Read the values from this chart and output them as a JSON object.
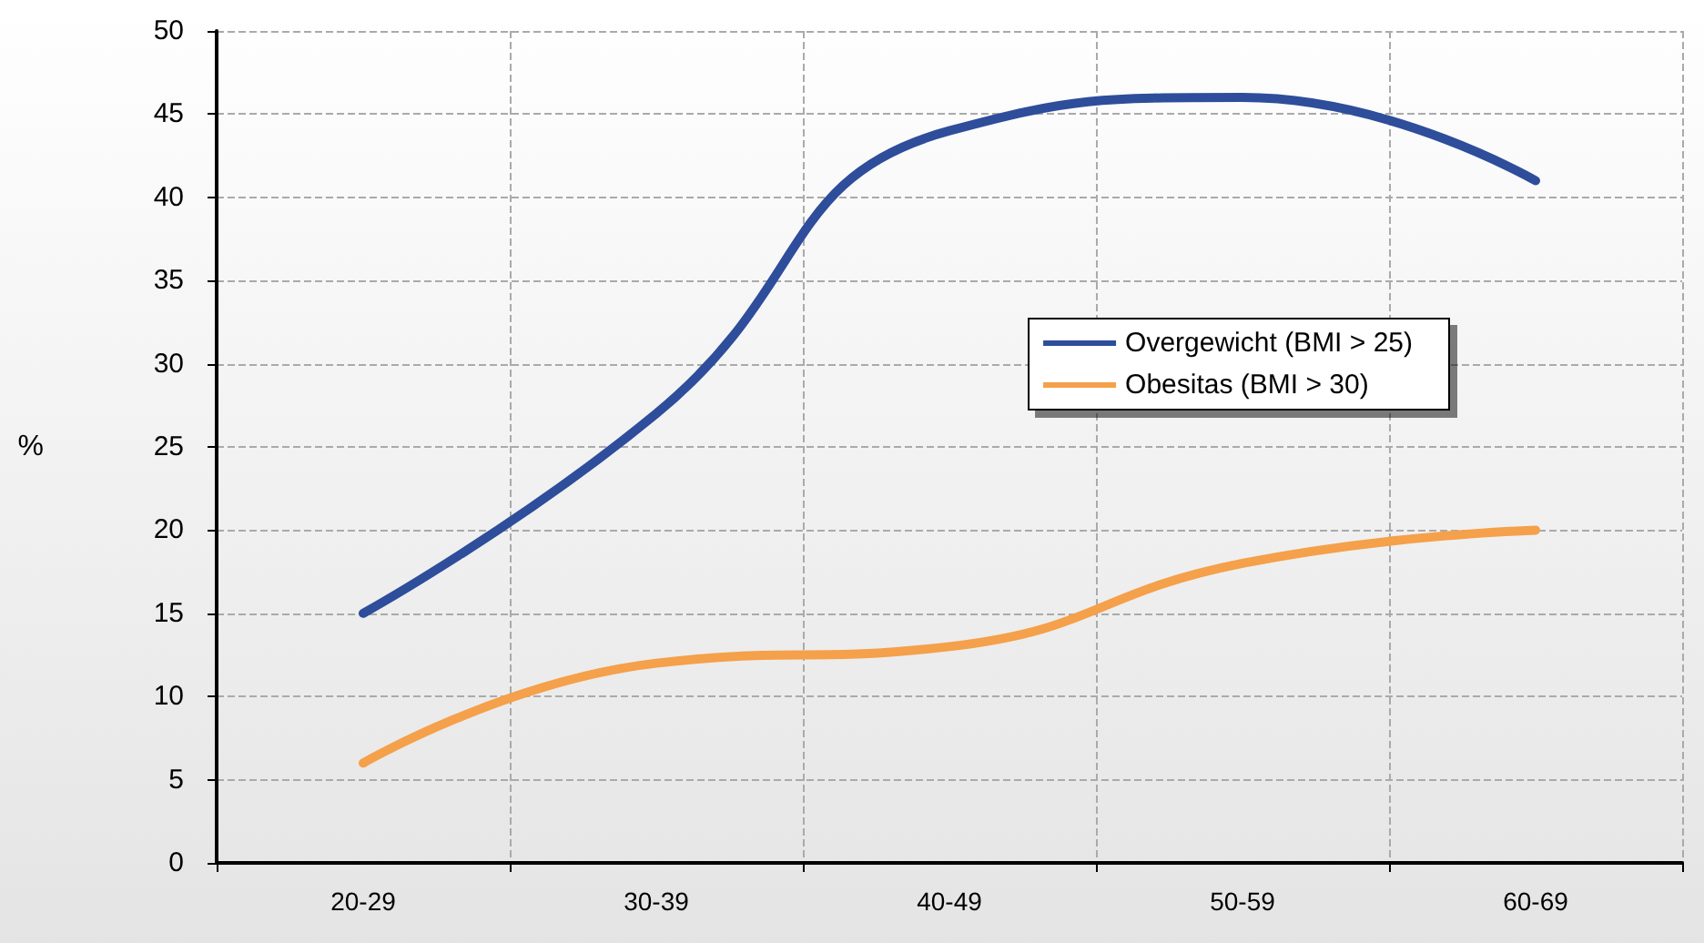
{
  "chart_data": {
    "type": "line",
    "ylabel": "%",
    "categories": [
      "20-29",
      "30-39",
      "40-49",
      "50-59",
      "60-69"
    ],
    "series": [
      {
        "name": "Overgewicht (BMI > 25)",
        "color": "#2e4d9b",
        "values": [
          15,
          27,
          44,
          46,
          41
        ]
      },
      {
        "name": "Obesitas (BMI > 30)",
        "color": "#f5a04a",
        "values": [
          6,
          12,
          13,
          18,
          20
        ]
      }
    ],
    "ylim": [
      0,
      50
    ],
    "yticks": [
      0,
      5,
      10,
      15,
      20,
      25,
      30,
      35,
      40,
      45,
      50
    ],
    "grid": true,
    "legend": "right",
    "marker": "none",
    "line_style": "solid"
  }
}
